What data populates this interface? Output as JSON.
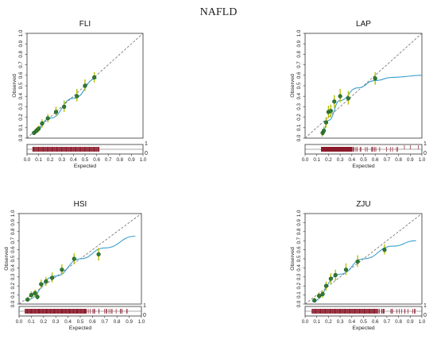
{
  "figure_title": "NAFLD",
  "style": {
    "point_fill": "#2e7d32",
    "point_edge": "#1b4d1e",
    "error_bar": "#b5c200",
    "smooth_line": "#3a9fd0",
    "reference_line": "#6e6e6e",
    "rug_color": "#8b1a2b"
  },
  "chart_data": [
    {
      "type": "scatter",
      "title": "FLI",
      "xlabel": "Expected",
      "ylabel": "Observed",
      "xlim": [
        0,
        1
      ],
      "ylim": [
        0,
        1
      ],
      "ticks": [
        "0.0",
        "0.1",
        "0.2",
        "0.3",
        "0.4",
        "0.5",
        "0.6",
        "0.7",
        "0.8",
        "0.9",
        "1.0"
      ],
      "rug_labels": [
        "1",
        "0"
      ],
      "reference_line": [
        [
          0,
          0
        ],
        [
          1,
          1
        ]
      ],
      "points": [
        {
          "x": 0.06,
          "y": 0.05,
          "lo": 0.03,
          "hi": 0.07
        },
        {
          "x": 0.08,
          "y": 0.07,
          "lo": 0.05,
          "hi": 0.1
        },
        {
          "x": 0.1,
          "y": 0.09,
          "lo": 0.06,
          "hi": 0.12
        },
        {
          "x": 0.13,
          "y": 0.14,
          "lo": 0.1,
          "hi": 0.18
        },
        {
          "x": 0.18,
          "y": 0.19,
          "lo": 0.15,
          "hi": 0.23
        },
        {
          "x": 0.25,
          "y": 0.25,
          "lo": 0.21,
          "hi": 0.3
        },
        {
          "x": 0.32,
          "y": 0.3,
          "lo": 0.25,
          "hi": 0.36
        },
        {
          "x": 0.43,
          "y": 0.4,
          "lo": 0.35,
          "hi": 0.47
        },
        {
          "x": 0.5,
          "y": 0.5,
          "lo": 0.45,
          "hi": 0.56
        },
        {
          "x": 0.58,
          "y": 0.58,
          "lo": 0.53,
          "hi": 0.63
        }
      ],
      "smooth": [
        [
          0.05,
          0.04
        ],
        [
          0.2,
          0.19
        ],
        [
          0.4,
          0.38
        ],
        [
          0.6,
          0.57
        ]
      ],
      "rug": {
        "dense": [
          0.05,
          0.62
        ],
        "events": []
      }
    },
    {
      "type": "scatter",
      "title": "LAP",
      "xlabel": "Expected",
      "ylabel": "Observed",
      "xlim": [
        0,
        1
      ],
      "ylim": [
        0,
        1
      ],
      "ticks": [
        "0.0",
        "0.1",
        "0.2",
        "0.3",
        "0.4",
        "0.5",
        "0.6",
        "0.7",
        "0.8",
        "0.9",
        "1.0"
      ],
      "rug_labels": [
        "1",
        "0"
      ],
      "reference_line": [
        [
          0,
          0
        ],
        [
          1,
          1
        ]
      ],
      "points": [
        {
          "x": 0.15,
          "y": 0.05,
          "lo": 0.02,
          "hi": 0.08
        },
        {
          "x": 0.16,
          "y": 0.07,
          "lo": 0.04,
          "hi": 0.11
        },
        {
          "x": 0.18,
          "y": 0.15,
          "lo": 0.1,
          "hi": 0.2
        },
        {
          "x": 0.2,
          "y": 0.25,
          "lo": 0.19,
          "hi": 0.31
        },
        {
          "x": 0.22,
          "y": 0.26,
          "lo": 0.2,
          "hi": 0.32
        },
        {
          "x": 0.25,
          "y": 0.35,
          "lo": 0.29,
          "hi": 0.41
        },
        {
          "x": 0.3,
          "y": 0.4,
          "lo": 0.34,
          "hi": 0.47
        },
        {
          "x": 0.37,
          "y": 0.38,
          "lo": 0.32,
          "hi": 0.45
        },
        {
          "x": 0.6,
          "y": 0.57,
          "lo": 0.51,
          "hi": 0.63
        }
      ],
      "smooth": [
        [
          0.14,
          0.02
        ],
        [
          0.2,
          0.17
        ],
        [
          0.3,
          0.36
        ],
        [
          0.45,
          0.48
        ],
        [
          0.6,
          0.55
        ],
        [
          0.75,
          0.58
        ],
        [
          1.0,
          0.6
        ]
      ],
      "rug": {
        "dense": [
          0.14,
          0.4
        ],
        "sparse": [
          0.4,
          0.8
        ],
        "events": [
          0.85,
          0.9,
          0.97
        ]
      }
    },
    {
      "type": "scatter",
      "title": "HSI",
      "xlabel": "Expected",
      "ylabel": "Observed",
      "xlim": [
        0,
        1
      ],
      "ylim": [
        0,
        1
      ],
      "ticks": [
        "0.0",
        "0.1",
        "0.2",
        "0.3",
        "0.4",
        "0.5",
        "0.6",
        "0.7",
        "0.8",
        "0.9",
        "1.0"
      ],
      "rug_labels": [
        "1",
        "0"
      ],
      "reference_line": [
        [
          0,
          0
        ],
        [
          1,
          1
        ]
      ],
      "points": [
        {
          "x": 0.07,
          "y": 0.05,
          "lo": 0.03,
          "hi": 0.08
        },
        {
          "x": 0.1,
          "y": 0.1,
          "lo": 0.06,
          "hi": 0.14
        },
        {
          "x": 0.13,
          "y": 0.12,
          "lo": 0.08,
          "hi": 0.16
        },
        {
          "x": 0.15,
          "y": 0.08,
          "lo": 0.05,
          "hi": 0.12
        },
        {
          "x": 0.18,
          "y": 0.22,
          "lo": 0.17,
          "hi": 0.27
        },
        {
          "x": 0.22,
          "y": 0.25,
          "lo": 0.2,
          "hi": 0.3
        },
        {
          "x": 0.27,
          "y": 0.29,
          "lo": 0.24,
          "hi": 0.35
        },
        {
          "x": 0.35,
          "y": 0.38,
          "lo": 0.32,
          "hi": 0.44
        },
        {
          "x": 0.45,
          "y": 0.5,
          "lo": 0.44,
          "hi": 0.56
        },
        {
          "x": 0.65,
          "y": 0.55,
          "lo": 0.48,
          "hi": 0.62
        }
      ],
      "smooth": [
        [
          0.05,
          0.04
        ],
        [
          0.3,
          0.31
        ],
        [
          0.5,
          0.5
        ],
        [
          0.7,
          0.62
        ],
        [
          0.95,
          0.75
        ]
      ],
      "rug": {
        "dense": [
          0.05,
          0.55
        ],
        "sparse": [
          0.55,
          0.9
        ],
        "events": []
      }
    },
    {
      "type": "scatter",
      "title": "ZJU",
      "xlabel": "Expected",
      "ylabel": "Observed",
      "xlim": [
        0,
        1
      ],
      "ylim": [
        0,
        1
      ],
      "ticks": [
        "0.0",
        "0.1",
        "0.2",
        "0.3",
        "0.4",
        "0.5",
        "0.6",
        "0.7",
        "0.8",
        "0.9",
        "1.0"
      ],
      "rug_labels": [
        "1",
        "0"
      ],
      "reference_line": [
        [
          0,
          0
        ],
        [
          1,
          1
        ]
      ],
      "points": [
        {
          "x": 0.08,
          "y": 0.04,
          "lo": 0.02,
          "hi": 0.07
        },
        {
          "x": 0.12,
          "y": 0.09,
          "lo": 0.06,
          "hi": 0.13
        },
        {
          "x": 0.15,
          "y": 0.11,
          "lo": 0.07,
          "hi": 0.15
        },
        {
          "x": 0.18,
          "y": 0.2,
          "lo": 0.15,
          "hi": 0.25
        },
        {
          "x": 0.22,
          "y": 0.28,
          "lo": 0.22,
          "hi": 0.34
        },
        {
          "x": 0.26,
          "y": 0.32,
          "lo": 0.26,
          "hi": 0.38
        },
        {
          "x": 0.35,
          "y": 0.38,
          "lo": 0.32,
          "hi": 0.45
        },
        {
          "x": 0.45,
          "y": 0.47,
          "lo": 0.41,
          "hi": 0.54
        },
        {
          "x": 0.68,
          "y": 0.6,
          "lo": 0.55,
          "hi": 0.66
        }
      ],
      "smooth": [
        [
          0.06,
          0.03
        ],
        [
          0.3,
          0.33
        ],
        [
          0.5,
          0.5
        ],
        [
          0.75,
          0.64
        ],
        [
          0.95,
          0.7
        ]
      ],
      "rug": {
        "dense": [
          0.06,
          0.62
        ],
        "sparse": [
          0.62,
          0.95
        ],
        "events": []
      }
    }
  ]
}
